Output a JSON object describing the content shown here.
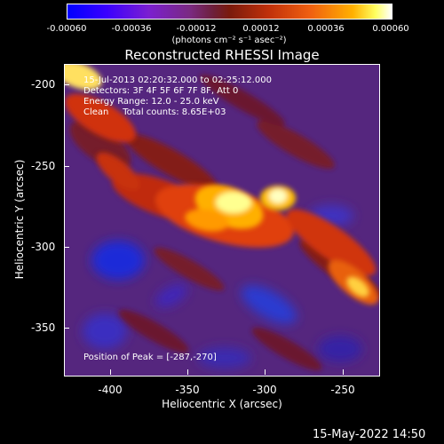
{
  "colorbar": {
    "ticks": [
      "-0.00060",
      "-0.00036",
      "-0.00012",
      "0.00012",
      "0.00036",
      "0.00060"
    ],
    "unit_label": "(photons cm⁻² s⁻¹ asec⁻²)"
  },
  "title": "Reconstructed RHESSI Image",
  "info": {
    "time_range": "15-Jul-2013 02:20:32.000 to 02:25:12.000",
    "detectors": "Detectors: 3F 4F 5F 6F 7F 8F, Att 0",
    "energy": "Energy Range: 12.0 - 25.0 keV",
    "clean": "Clean     Total counts: 8.65E+03",
    "peak": "Position of Peak = [-287,-270]"
  },
  "axes": {
    "xlabel": "Heliocentric X (arcsec)",
    "ylabel": "Heliocentric Y (arcsec)",
    "xticks": [
      "-400",
      "-350",
      "-300",
      "-250"
    ],
    "yticks": [
      "-200",
      "-250",
      "-300",
      "-350"
    ],
    "xlim": [
      -425,
      -232
    ],
    "ylim": [
      -383,
      -191
    ]
  },
  "timestamp": "15-May-2022 14:50"
}
